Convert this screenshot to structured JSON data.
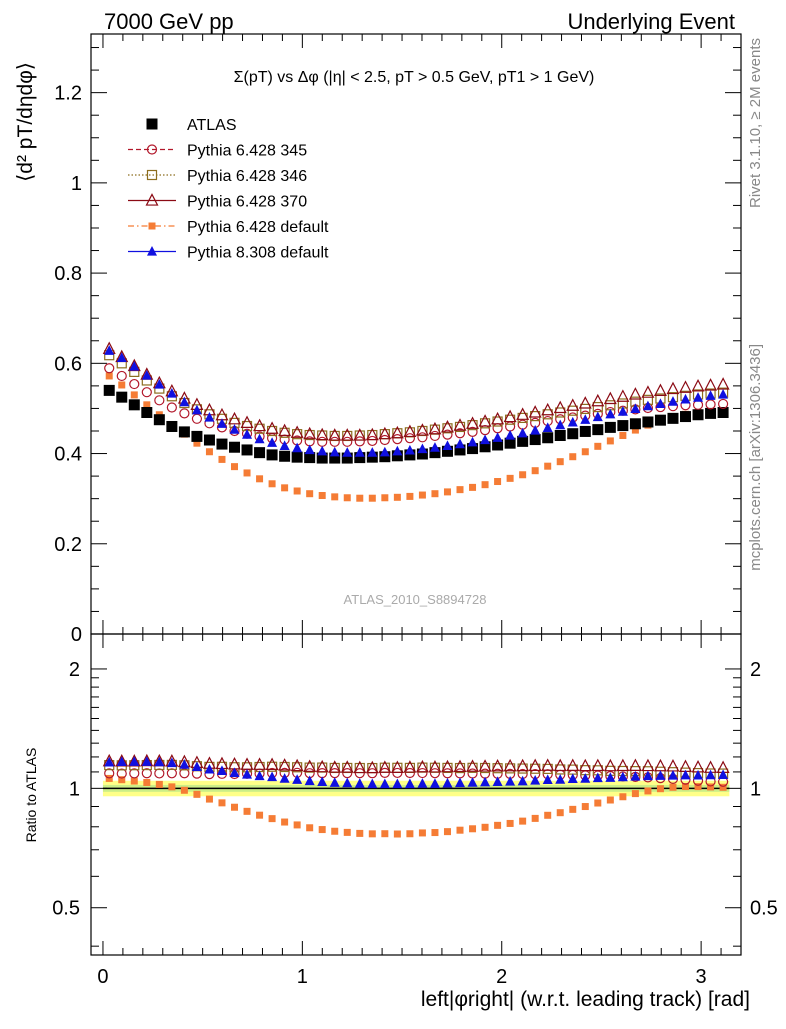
{
  "header": {
    "left": "7000 GeV pp",
    "right": "Underlying Event"
  },
  "side_labels": {
    "rivet": "Rivet 3.1.10, ≥ 2M events",
    "mcplots": "mcplots.cern.ch [arXiv:1306.3436]"
  },
  "plot_title": "Σ(pT) vs Δφ (|η| < 2.5, pT > 0.5 GeV, pT1 > 1 GeV)",
  "analysis_id": "ATLAS_2010_S8894728",
  "colors": {
    "atlas": "#000000",
    "p345": "#b2182b",
    "p346": "#8c6d1f",
    "p370": "#8b0a14",
    "p6def": "#f57c35",
    "p8def": "#1010e0",
    "band_inner": "#ccee88",
    "band_outer": "#ffff88"
  },
  "chart_data": [
    {
      "type": "scatter",
      "title": "Σ(pT) vs Δφ (|η| < 2.5, pT > 0.5 GeV, pT1 > 1 GeV)",
      "ylabel": "⟨d² pT/dηdφ⟩",
      "xlabel": "left|φright| (w.r.t. leading track) [rad]",
      "xlim": [
        -0.06,
        3.2
      ],
      "ylim": [
        0,
        1.33
      ],
      "x_ticks": [
        "0",
        "1",
        "2",
        "3"
      ],
      "y_ticks": [
        "0",
        "0.2",
        "0.4",
        "0.6",
        "0.8",
        "1",
        "1.2"
      ],
      "grid": false,
      "legend_position": "top-left",
      "series": [
        {
          "name": "ATLAS",
          "key": "atlas",
          "values": [
            0.54,
            0.525,
            0.508,
            0.491,
            0.475,
            0.46,
            0.448,
            0.438,
            0.43,
            0.421,
            0.414,
            0.408,
            0.402,
            0.397,
            0.394,
            0.392,
            0.391,
            0.39,
            0.39,
            0.39,
            0.391,
            0.392,
            0.393,
            0.395,
            0.397,
            0.399,
            0.402,
            0.405,
            0.408,
            0.411,
            0.415,
            0.419,
            0.423,
            0.427,
            0.431,
            0.435,
            0.44,
            0.444,
            0.449,
            0.453,
            0.458,
            0.462,
            0.466,
            0.47,
            0.474,
            0.478,
            0.482,
            0.486,
            0.489,
            0.491
          ]
        },
        {
          "name": "Pythia 6.428 345",
          "key": "p345",
          "values": [
            0.589,
            0.572,
            0.554,
            0.536,
            0.518,
            0.502,
            0.489,
            0.477,
            0.467,
            0.458,
            0.45,
            0.444,
            0.438,
            0.434,
            0.431,
            0.429,
            0.427,
            0.426,
            0.426,
            0.426,
            0.427,
            0.428,
            0.43,
            0.432,
            0.434,
            0.436,
            0.439,
            0.442,
            0.445,
            0.448,
            0.452,
            0.456,
            0.46,
            0.464,
            0.468,
            0.472,
            0.476,
            0.48,
            0.484,
            0.488,
            0.492,
            0.495,
            0.498,
            0.501,
            0.503,
            0.505,
            0.507,
            0.508,
            0.509,
            0.51
          ]
        },
        {
          "name": "Pythia 6.428 346",
          "key": "p346",
          "values": [
            0.618,
            0.6,
            0.581,
            0.562,
            0.544,
            0.527,
            0.512,
            0.498,
            0.487,
            0.477,
            0.468,
            0.461,
            0.455,
            0.45,
            0.446,
            0.443,
            0.441,
            0.44,
            0.439,
            0.439,
            0.44,
            0.441,
            0.443,
            0.445,
            0.447,
            0.45,
            0.453,
            0.456,
            0.459,
            0.463,
            0.467,
            0.471,
            0.475,
            0.479,
            0.483,
            0.487,
            0.491,
            0.495,
            0.499,
            0.503,
            0.507,
            0.511,
            0.515,
            0.519,
            0.522,
            0.525,
            0.528,
            0.531,
            0.533,
            0.535
          ]
        },
        {
          "name": "Pythia 6.428 370",
          "key": "p370",
          "values": [
            0.632,
            0.614,
            0.594,
            0.575,
            0.556,
            0.538,
            0.522,
            0.508,
            0.496,
            0.485,
            0.476,
            0.468,
            0.461,
            0.455,
            0.45,
            0.446,
            0.443,
            0.441,
            0.44,
            0.44,
            0.44,
            0.441,
            0.443,
            0.445,
            0.448,
            0.451,
            0.454,
            0.458,
            0.462,
            0.466,
            0.471,
            0.476,
            0.481,
            0.486,
            0.491,
            0.496,
            0.501,
            0.506,
            0.511,
            0.516,
            0.521,
            0.526,
            0.531,
            0.535,
            0.539,
            0.543,
            0.546,
            0.549,
            0.551,
            0.553
          ]
        },
        {
          "name": "Pythia 6.428 default",
          "key": "p6def",
          "values": [
            0.572,
            0.552,
            0.53,
            0.508,
            0.486,
            0.464,
            0.443,
            0.423,
            0.404,
            0.387,
            0.371,
            0.357,
            0.344,
            0.333,
            0.324,
            0.317,
            0.311,
            0.307,
            0.304,
            0.302,
            0.301,
            0.301,
            0.302,
            0.303,
            0.305,
            0.308,
            0.311,
            0.315,
            0.32,
            0.325,
            0.331,
            0.338,
            0.345,
            0.353,
            0.362,
            0.372,
            0.382,
            0.393,
            0.404,
            0.416,
            0.428,
            0.44,
            0.452,
            0.463,
            0.473,
            0.481,
            0.487,
            0.491,
            0.493,
            0.494
          ]
        },
        {
          "name": "Pythia 8.308 default",
          "key": "p8def",
          "values": [
            0.628,
            0.612,
            0.593,
            0.573,
            0.553,
            0.533,
            0.514,
            0.496,
            0.48,
            0.466,
            0.453,
            0.442,
            0.432,
            0.424,
            0.417,
            0.412,
            0.408,
            0.405,
            0.403,
            0.402,
            0.402,
            0.402,
            0.403,
            0.405,
            0.407,
            0.41,
            0.413,
            0.417,
            0.421,
            0.425,
            0.43,
            0.435,
            0.44,
            0.445,
            0.451,
            0.457,
            0.463,
            0.469,
            0.475,
            0.481,
            0.487,
            0.493,
            0.499,
            0.505,
            0.51,
            0.515,
            0.52,
            0.524,
            0.528,
            0.531
          ]
        }
      ]
    },
    {
      "type": "scatter",
      "ylabel": "Ratio to ATLAS",
      "xlabel": "left|φright| (w.r.t. leading track) [rad]",
      "ylim": [
        0.38,
        2.45
      ],
      "y_scale": "log",
      "y_ticks": [
        "0.5",
        "1",
        "2"
      ],
      "grid": false,
      "reference_line": 1.0,
      "band": {
        "inner": [
          0.98,
          1.02
        ],
        "outer": [
          0.955,
          1.045
        ]
      }
    }
  ]
}
